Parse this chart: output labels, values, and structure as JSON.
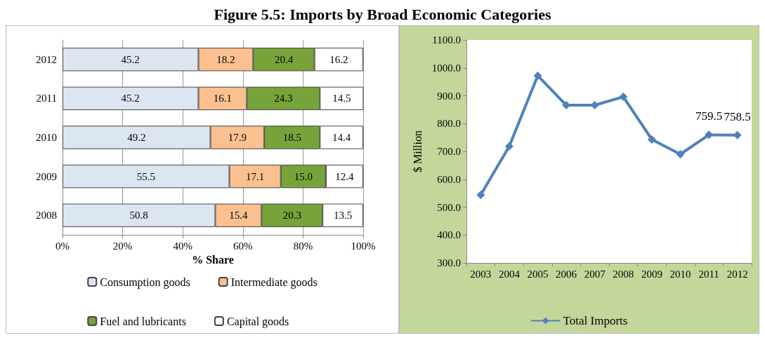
{
  "chart_data": [
    {
      "type": "bar",
      "title": "Figure 5.5: Imports by Broad Economic Categories",
      "orientation": "horizontal",
      "stacked": true,
      "xlabel": "% Share",
      "categories": [
        "2012",
        "2011",
        "2010",
        "2009",
        "2008"
      ],
      "series": [
        {
          "name": "Consumption goods",
          "color": "#dce6f2",
          "values": [
            45.2,
            45.2,
            49.2,
            55.5,
            50.8
          ],
          "value_labels": [
            "45.2",
            "45.2",
            "49.2",
            "55.5",
            "50.8"
          ]
        },
        {
          "name": "Intermediate goods",
          "color": "#fac090",
          "values": [
            18.2,
            16.1,
            17.9,
            17.1,
            15.4
          ],
          "value_labels": [
            "18.2",
            "16.1",
            "17.9",
            "17.1",
            "15.4"
          ]
        },
        {
          "name": "Fuel and lubricants",
          "color": "#77a43a",
          "values": [
            20.4,
            24.3,
            18.5,
            15.0,
            20.3
          ],
          "value_labels": [
            "20.4",
            "24.3",
            "18.5",
            "15.0",
            "20.3"
          ]
        },
        {
          "name": "Capital goods",
          "color": "#ffffff",
          "values": [
            16.2,
            14.5,
            14.4,
            12.4,
            13.5
          ],
          "value_labels": [
            "16.2",
            "14.5",
            "14.4",
            "12.4",
            "13.5"
          ]
        }
      ],
      "xlim": [
        0,
        100
      ],
      "xticks": [
        {
          "value": 0,
          "label": "0%"
        },
        {
          "value": 20,
          "label": "20%"
        },
        {
          "value": 40,
          "label": "40%"
        },
        {
          "value": 60,
          "label": "60%"
        },
        {
          "value": 80,
          "label": "80%"
        },
        {
          "value": 100,
          "label": "100%"
        }
      ],
      "grid": "x",
      "legend": "bottom"
    },
    {
      "type": "line",
      "ylabel": "$ Million",
      "categories": [
        "2003",
        "2004",
        "2005",
        "2006",
        "2007",
        "2008",
        "2009",
        "2010",
        "2011",
        "2012"
      ],
      "series": [
        {
          "name": "Total Imports",
          "color": "#4f81bd",
          "values": [
            544,
            718,
            972,
            866,
            866,
            896,
            743,
            690,
            759.5,
            758.5
          ],
          "value_labels": [
            null,
            null,
            null,
            null,
            null,
            null,
            null,
            null,
            "759.5",
            "758.5"
          ]
        }
      ],
      "ylim": [
        300,
        1100
      ],
      "yticks": [
        {
          "value": 300,
          "label": "300.0"
        },
        {
          "value": 400,
          "label": "400.0"
        },
        {
          "value": 500,
          "label": "500.0"
        },
        {
          "value": 600,
          "label": "600.0"
        },
        {
          "value": 700,
          "label": "700.0"
        },
        {
          "value": 800,
          "label": "800.0"
        },
        {
          "value": 900,
          "label": "900.0"
        },
        {
          "value": 1000,
          "label": "1000.0"
        },
        {
          "value": 1100,
          "label": "1100.0"
        }
      ],
      "marker": "diamond",
      "line_style": "solid",
      "grid": false,
      "legend": "bottom"
    }
  ]
}
